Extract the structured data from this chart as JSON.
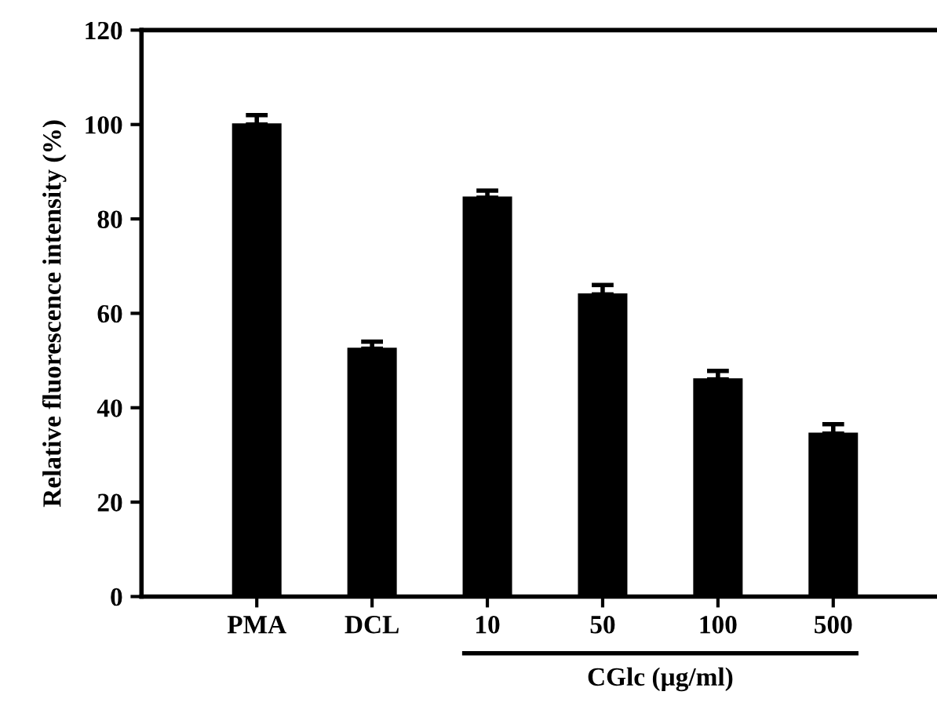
{
  "chart_data": {
    "type": "bar",
    "ylabel": "Relative fluorescence intensity (%)",
    "xlabel": "CGlc (µg/ml)",
    "categories": [
      "PMA",
      "DCL",
      "10",
      "50",
      "100",
      "500"
    ],
    "values": [
      100,
      52.5,
      84.5,
      64,
      46,
      34.5
    ],
    "errors": [
      2,
      1.5,
      1.5,
      2,
      1.8,
      2
    ],
    "color": "#000000",
    "ylim": [
      0,
      120
    ],
    "yticks": [
      0,
      20,
      40,
      60,
      80,
      100,
      120
    ],
    "grid": false,
    "legend": false
  }
}
